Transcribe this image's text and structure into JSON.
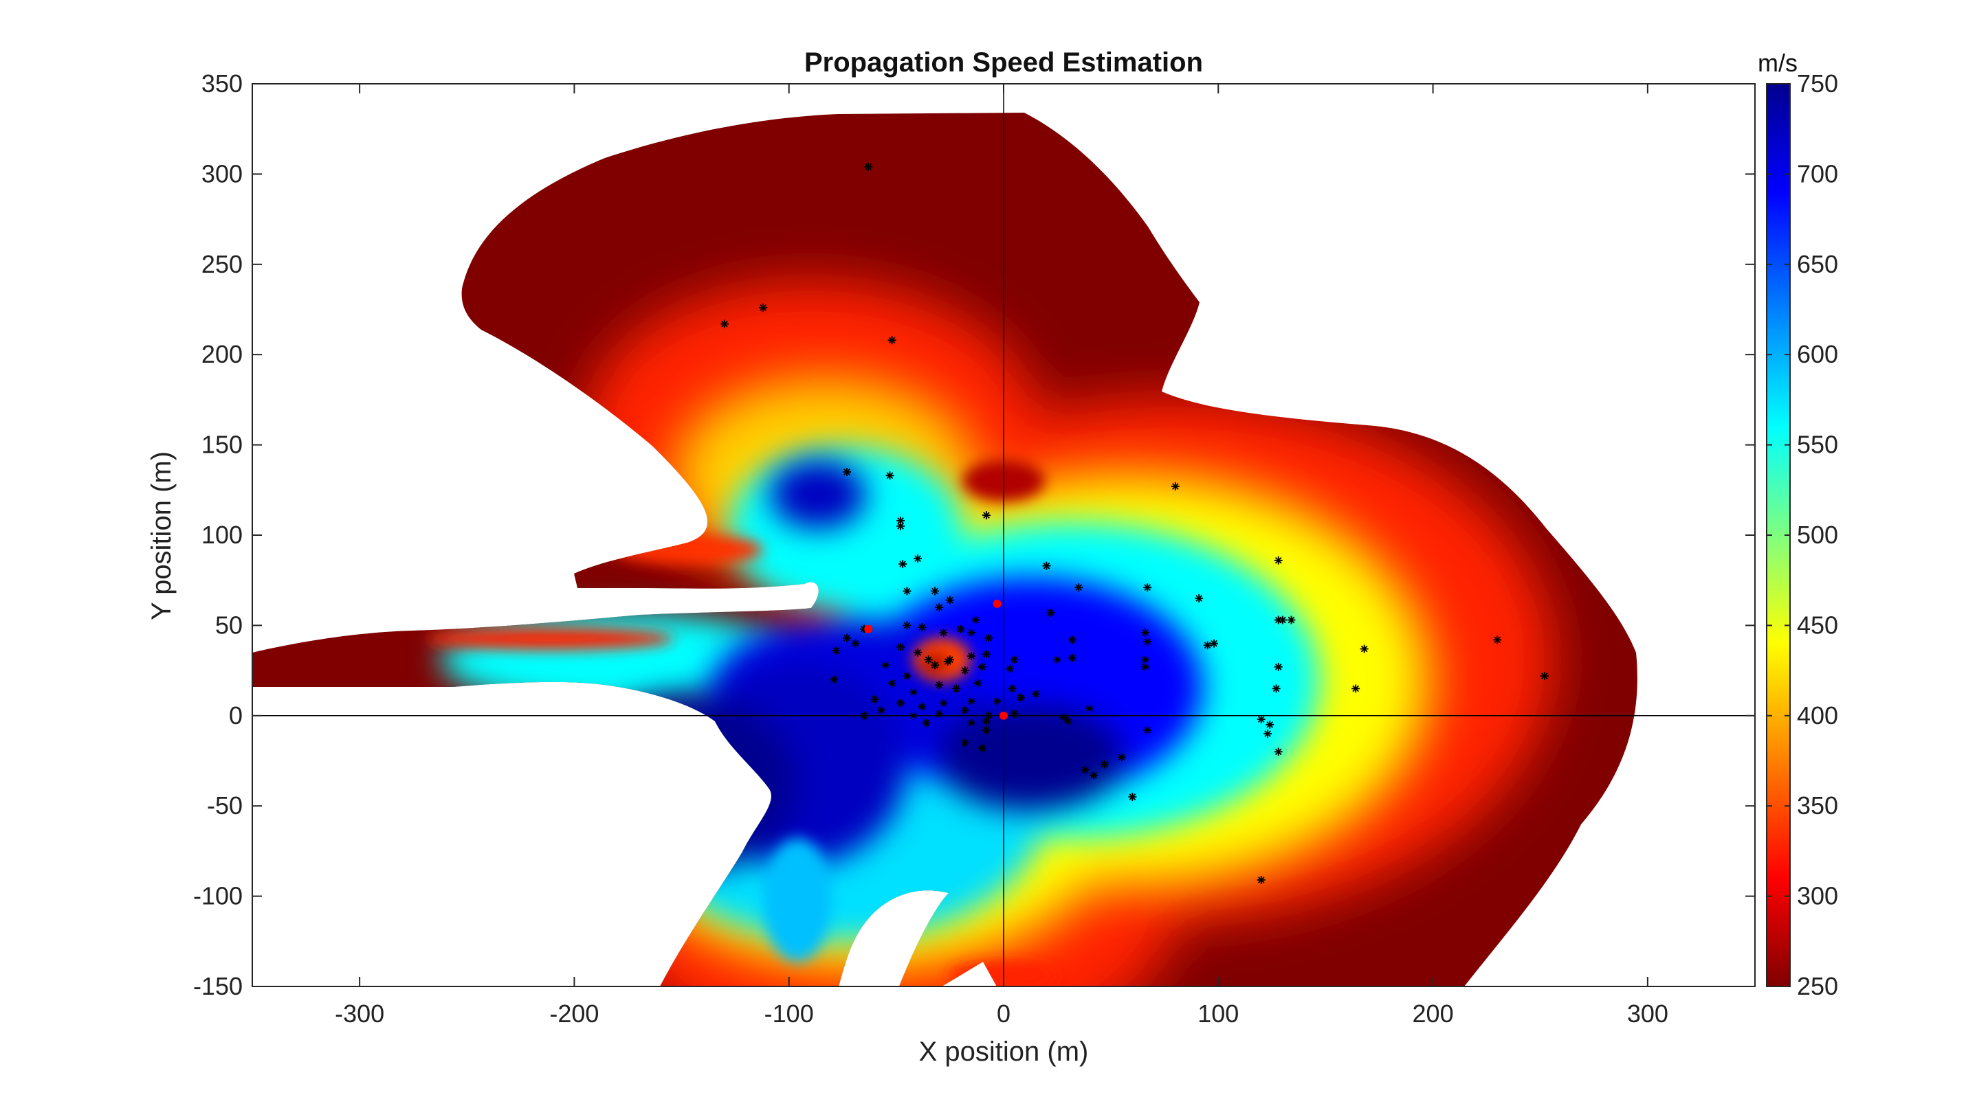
{
  "chart_data": {
    "type": "heatmap",
    "title": "Propagation Speed Estimation",
    "xlabel": "X position (m)",
    "ylabel": "Y position (m)",
    "xlim": [
      -350,
      350
    ],
    "ylim": [
      -150,
      350
    ],
    "xticks": [
      -300,
      -200,
      -100,
      0,
      100,
      200,
      300
    ],
    "yticks": [
      -150,
      -100,
      -50,
      0,
      50,
      100,
      150,
      200,
      250,
      300,
      350
    ],
    "colorbar": {
      "unit": "m/s",
      "range": [
        250,
        750
      ],
      "ticks": [
        250,
        300,
        350,
        400,
        450,
        500,
        550,
        600,
        650,
        700,
        750
      ],
      "colormap": "jet",
      "stops": [
        "#00008f",
        "#0000ff",
        "#00ffff",
        "#ffff00",
        "#ff0000",
        "#800000"
      ]
    },
    "reference_lines": {
      "x": 0,
      "y": 0,
      "color": "#000000"
    },
    "sensors": {
      "marker": "*",
      "color": "#000000",
      "points": [
        [
          -63,
          304
        ],
        [
          -130,
          217
        ],
        [
          -112,
          226
        ],
        [
          -52,
          208
        ],
        [
          80,
          127
        ],
        [
          -73,
          135
        ],
        [
          -53,
          133
        ],
        [
          -48,
          108
        ],
        [
          -48,
          105
        ],
        [
          -8,
          111
        ],
        [
          -47,
          84
        ],
        [
          -40,
          87
        ],
        [
          20,
          83
        ],
        [
          128,
          86
        ],
        [
          -45,
          69
        ],
        [
          -32,
          69
        ],
        [
          -25,
          64
        ],
        [
          35,
          71
        ],
        [
          67,
          71
        ],
        [
          91,
          65
        ],
        [
          -30,
          60
        ],
        [
          -13,
          53
        ],
        [
          22,
          57
        ],
        [
          128,
          53
        ],
        [
          130,
          53
        ],
        [
          134,
          53
        ],
        [
          -65,
          48
        ],
        [
          -45,
          50
        ],
        [
          -38,
          49
        ],
        [
          -28,
          46
        ],
        [
          -20,
          48
        ],
        [
          -15,
          46
        ],
        [
          -7,
          43
        ],
        [
          32,
          42
        ],
        [
          66,
          46
        ],
        [
          67,
          41
        ],
        [
          98,
          40
        ],
        [
          95,
          39
        ],
        [
          -73,
          43
        ],
        [
          -69,
          40
        ],
        [
          -78,
          36
        ],
        [
          -48,
          38
        ],
        [
          -40,
          35
        ],
        [
          -35,
          31
        ],
        [
          -25,
          31
        ],
        [
          -15,
          33
        ],
        [
          -8,
          34
        ],
        [
          5,
          31
        ],
        [
          25,
          31
        ],
        [
          32,
          32
        ],
        [
          66,
          31
        ],
        [
          168,
          37
        ],
        [
          -55,
          28
        ],
        [
          -45,
          22
        ],
        [
          -32,
          28
        ],
        [
          -26,
          30
        ],
        [
          -18,
          25
        ],
        [
          -10,
          27
        ],
        [
          3,
          26
        ],
        [
          66,
          27
        ],
        [
          128,
          27
        ],
        [
          -79,
          20
        ],
        [
          -52,
          18
        ],
        [
          -42,
          13
        ],
        [
          -30,
          17
        ],
        [
          -22,
          15
        ],
        [
          -12,
          18
        ],
        [
          4,
          15
        ],
        [
          15,
          12
        ],
        [
          127,
          15
        ],
        [
          164,
          15
        ],
        [
          -60,
          9
        ],
        [
          -48,
          7
        ],
        [
          -38,
          5
        ],
        [
          -28,
          7
        ],
        [
          -15,
          8
        ],
        [
          -3,
          8
        ],
        [
          8,
          10
        ],
        [
          -57,
          3
        ],
        [
          -42,
          0
        ],
        [
          -30,
          1
        ],
        [
          -18,
          3
        ],
        [
          -7,
          0
        ],
        [
          5,
          1
        ],
        [
          40,
          4
        ],
        [
          30,
          -3
        ],
        [
          28,
          -1
        ],
        [
          120,
          -2
        ],
        [
          124,
          -5
        ],
        [
          -65,
          0
        ],
        [
          -36,
          -4
        ],
        [
          -8,
          -3
        ],
        [
          -15,
          -4
        ],
        [
          -8,
          -8
        ],
        [
          67,
          -8
        ],
        [
          123,
          -10
        ],
        [
          -18,
          -15
        ],
        [
          -10,
          -18
        ],
        [
          128,
          -20
        ],
        [
          55,
          -23
        ],
        [
          47,
          -27
        ],
        [
          38,
          -30
        ],
        [
          42,
          -33
        ],
        [
          60,
          -45
        ],
        [
          120,
          -91
        ],
        [
          230,
          42
        ],
        [
          252,
          22
        ]
      ]
    },
    "highlight_points": {
      "color": "#ff0000",
      "points": [
        [
          -3,
          62
        ],
        [
          -63,
          48
        ],
        [
          0,
          0
        ]
      ]
    }
  }
}
